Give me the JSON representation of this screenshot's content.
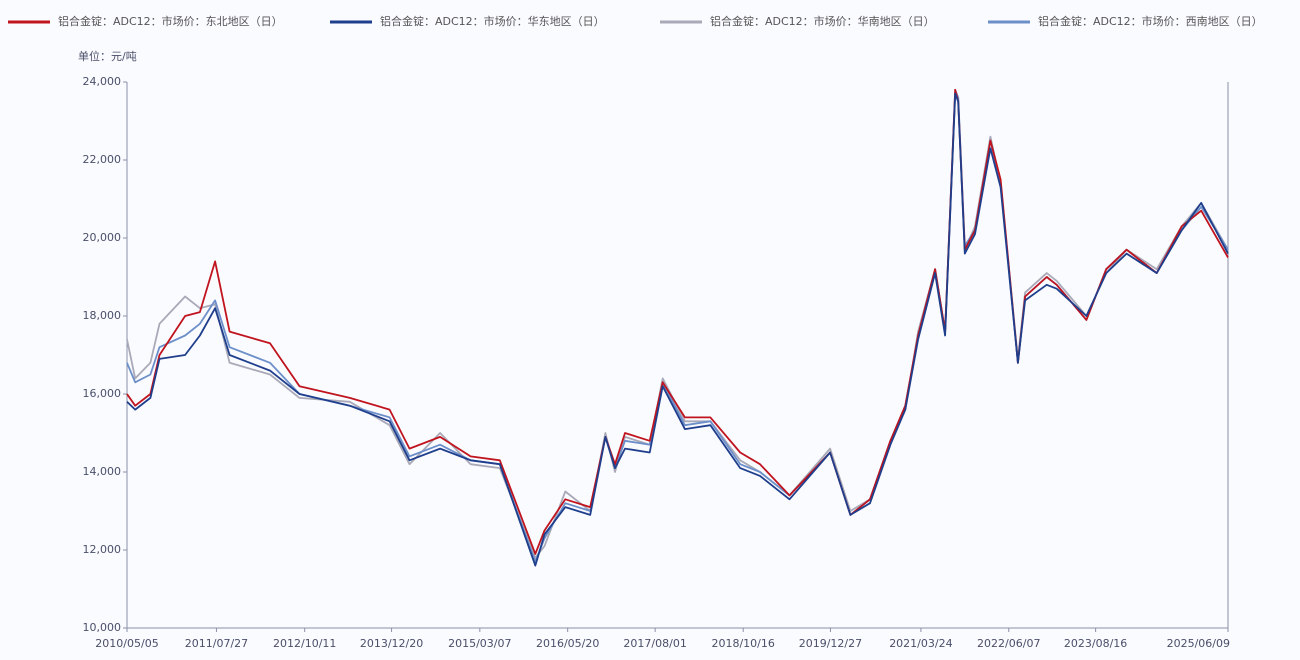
{
  "chart_data": {
    "type": "line",
    "unit_label": "单位：元/吨",
    "x": [
      "2010/05/05",
      "2010/06/15",
      "2010/08/30",
      "2010/10/15",
      "2011/02/20",
      "2011/05/05",
      "2011/07/20",
      "2011/10/01",
      "2012/04/20",
      "2012/09/15",
      "2013/05/25",
      "2013/12/10",
      "2014/03/20",
      "2014/08/20",
      "2015/01/20",
      "2015/06/15",
      "2015/12/10",
      "2016/01/25",
      "2016/05/08",
      "2016/09/10",
      "2016/11/25",
      "2017/01/12",
      "2017/03/03",
      "2017/07/05",
      "2017/09/08",
      "2017/12/28",
      "2018/05/05",
      "2018/10/01",
      "2019/01/08",
      "2019/06/05",
      "2019/12/25",
      "2020/04/05",
      "2020/07/12",
      "2020/10/22",
      "2021/01/05",
      "2021/03/10",
      "2021/06/03",
      "2021/07/23",
      "2021/09/12",
      "2021/09/27",
      "2021/10/30",
      "2021/12/20",
      "2022/03/07",
      "2022/04/27",
      "2022/07/23",
      "2022/08/28",
      "2022/12/14",
      "2023/02/02",
      "2023/07/01",
      "2023/10/08",
      "2024/01/18",
      "2024/06/17",
      "2024/10/20",
      "2025/01/26",
      "2025/06/09"
    ],
    "series": [
      {
        "name": "铝合金锭：ADC12：市场价：东北地区（日）",
        "color": "#c0141e",
        "values": [
          16000,
          15700,
          16000,
          17000,
          18000,
          18100,
          19400,
          17600,
          17300,
          16200,
          15900,
          15600,
          14600,
          14900,
          14400,
          14300,
          11900,
          12500,
          13300,
          13100,
          14900,
          14200,
          15000,
          14800,
          16300,
          15400,
          15400,
          14500,
          14200,
          13400,
          14500,
          12900,
          13300,
          14800,
          15700,
          17500,
          19200,
          17600,
          23800,
          23500,
          19700,
          20200,
          22500,
          21500,
          16800,
          18500,
          19000,
          18800,
          17900,
          19200,
          19700,
          19100,
          20300,
          20700,
          19500
        ]
      },
      {
        "name": "铝合金锭：ADC12：市场价：华东地区（日）",
        "color": "#1f3e8c",
        "values": [
          15800,
          15600,
          15900,
          16900,
          17000,
          17500,
          18200,
          17000,
          16600,
          16000,
          15700,
          15300,
          14300,
          14600,
          14300,
          14200,
          11600,
          12400,
          13100,
          12900,
          14900,
          14100,
          14600,
          14500,
          16200,
          15100,
          15200,
          14100,
          13900,
          13300,
          14500,
          12900,
          13200,
          14700,
          15600,
          17400,
          19100,
          17500,
          23700,
          23500,
          19600,
          20100,
          22300,
          21300,
          16800,
          18400,
          18800,
          18700,
          18000,
          19100,
          19600,
          19100,
          20200,
          20900,
          19600
        ]
      },
      {
        "name": "铝合金锭：ADC12：市场价：华南地区（日）",
        "color": "#a9a9b8",
        "values": [
          17400,
          16400,
          16800,
          17800,
          18500,
          18200,
          18300,
          16800,
          16500,
          15900,
          15800,
          15200,
          14200,
          15000,
          14200,
          14100,
          11800,
          12100,
          13500,
          13000,
          15000,
          14000,
          14900,
          14700,
          16400,
          15300,
          15300,
          14300,
          14000,
          13400,
          14600,
          13000,
          13300,
          14800,
          15600,
          17600,
          19200,
          17600,
          23700,
          23600,
          19700,
          20300,
          22600,
          21400,
          16900,
          18600,
          19100,
          18900,
          18000,
          19100,
          19700,
          19200,
          20300,
          20900,
          19700
        ]
      },
      {
        "name": "铝合金锭：ADC12：市场价：西南地区（日）",
        "color": "#6d8fc9",
        "values": [
          16800,
          16300,
          16500,
          17200,
          17500,
          17800,
          18400,
          17200,
          16800,
          16000,
          15700,
          15400,
          14400,
          14700,
          14300,
          14200,
          11700,
          12300,
          13200,
          13000,
          14900,
          14100,
          14800,
          14700,
          16300,
          15200,
          15300,
          14200,
          14000,
          13400,
          14500,
          12900,
          13300,
          14800,
          15700,
          17500,
          19200,
          17600,
          23800,
          23600,
          19800,
          20200,
          22500,
          21400,
          16800,
          18500,
          19000,
          18800,
          17900,
          19200,
          19700,
          19100,
          20200,
          20800,
          19700
        ]
      }
    ],
    "xlim": [
      "2010/05/05",
      "2025/06/09"
    ],
    "xticks": [
      "2010/05/05",
      "2011/07/27",
      "2012/10/11",
      "2013/12/20",
      "2015/03/07",
      "2016/05/20",
      "2017/08/01",
      "2018/10/16",
      "2019/12/27",
      "2021/03/24",
      "2022/06/07",
      "2023/08/16",
      "2025/06/09"
    ],
    "ylim": [
      10000,
      24000
    ],
    "yticks": [
      {
        "value": 10000,
        "label": "10,000"
      },
      {
        "value": 12000,
        "label": "12,000"
      },
      {
        "value": 14000,
        "label": "14,000"
      },
      {
        "value": 16000,
        "label": "16,000"
      },
      {
        "value": 18000,
        "label": "18,000"
      },
      {
        "value": 20000,
        "label": "20,000"
      },
      {
        "value": 22000,
        "label": "22,000"
      },
      {
        "value": 24000,
        "label": "24,000"
      }
    ]
  }
}
